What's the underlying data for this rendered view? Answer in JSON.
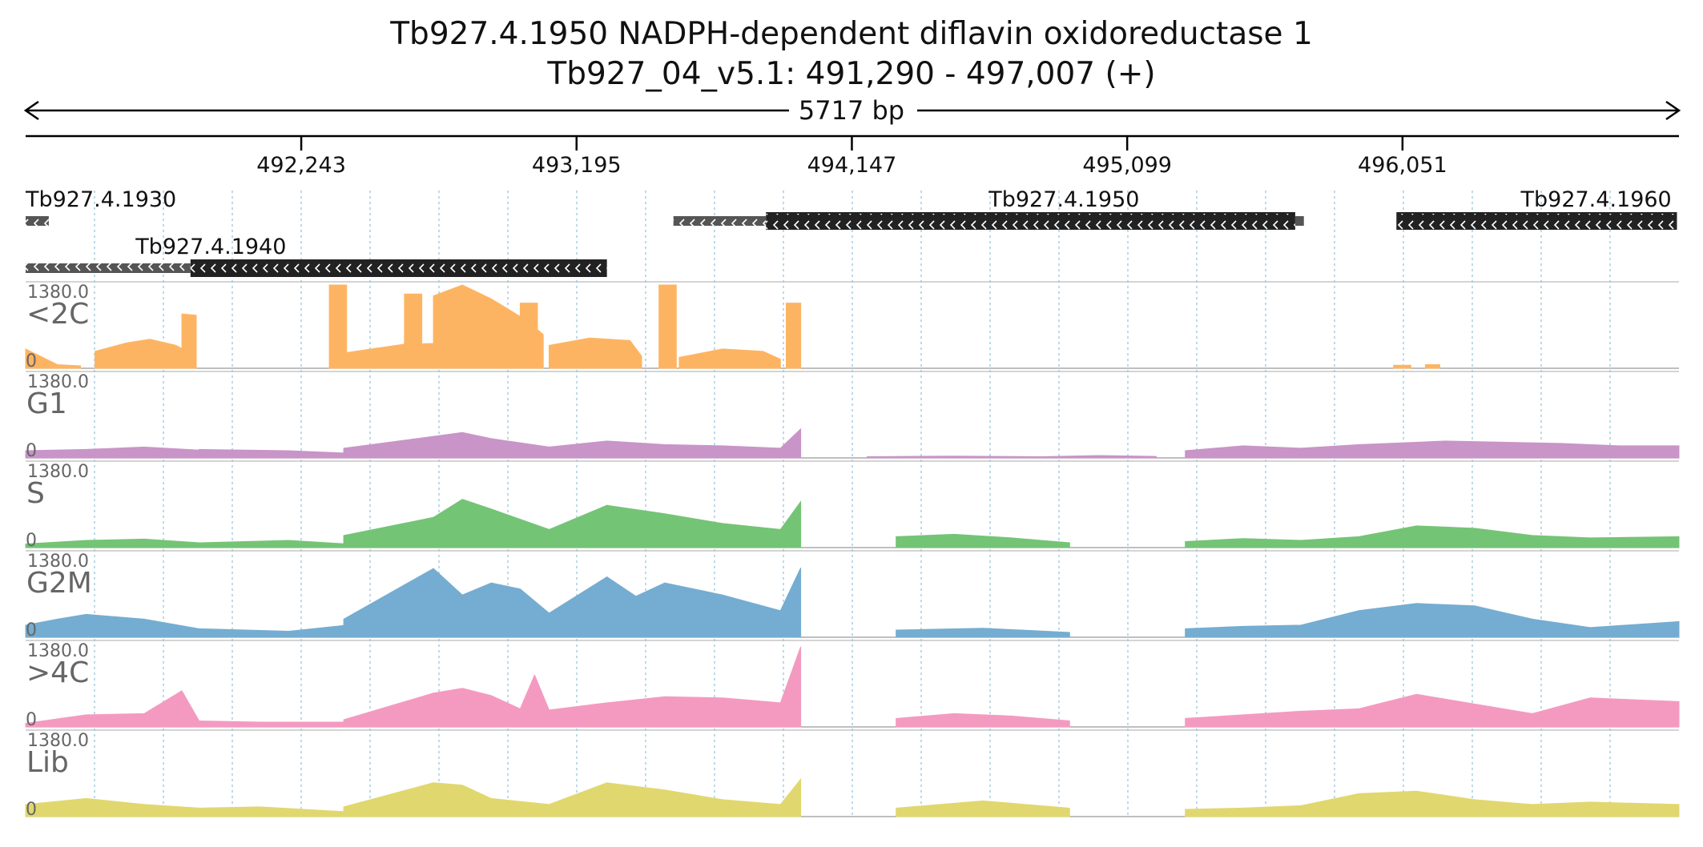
{
  "header": {
    "title": "Tb927.4.1950  NADPH-dependent diflavin oxidoreductase 1",
    "subtitle": "Tb927_04_v5.1: 491,290 - 497,007 (+)",
    "span_label": "5717 bp"
  },
  "ruler": {
    "ticks": [
      "492,243",
      "493,195",
      "494,147",
      "495,099",
      "496,051"
    ]
  },
  "genes": [
    {
      "id": "Tb927.4.1930"
    },
    {
      "id": "Tb927.4.1940"
    },
    {
      "id": "Tb927.4.1950"
    },
    {
      "id": "Tb927.4.1960"
    }
  ],
  "chart_data": {
    "type": "area",
    "region": {
      "chrom": "Tb927_04_v5.1",
      "start": 491290,
      "end": 497007,
      "strand": "+",
      "length_bp": 5717
    },
    "gene_models": [
      {
        "id": "Tb927.4.1930",
        "strand": "-",
        "utr": [
          491290,
          491370
        ],
        "cds": [],
        "label_at": 491290
      },
      {
        "id": "Tb927.4.1940",
        "strand": "-",
        "utr": [
          491290,
          491860
        ],
        "cds": [
          491860,
          493300
        ],
        "label_at": 491670
      },
      {
        "id": "Tb927.4.1950",
        "strand": "-",
        "utr": [
          493530,
          493850
        ],
        "cds": [
          493850,
          495680
        ],
        "utr2": [
          495680,
          495710
        ],
        "label_at": 494620
      },
      {
        "id": "Tb927.4.1960",
        "strand": "-",
        "utr": [],
        "cds": [
          496030,
          497000
        ],
        "label_at": 496460
      }
    ],
    "ylim": [
      0,
      1380
    ],
    "ymax_label": "1380.0",
    "ymin_label": "0",
    "tracks": [
      {
        "name": "<2C",
        "color": "#fdb462",
        "segments": [
          {
            "x": [
              491290,
              491400,
              491480
            ],
            "y": [
              320,
              60,
              40
            ]
          },
          {
            "x": [
              491530,
              491640,
              491720,
              491810,
              491870
            ],
            "y": [
              280,
              420,
              480,
              380,
              220
            ]
          },
          {
            "x": [
              491830,
              491880
            ],
            "y": [
              900,
              880
            ]
          },
          {
            "x": [
              492340,
              492400
            ],
            "y": [
              1380,
              1380
            ]
          },
          {
            "x": [
              492400,
              492600,
              492780,
              492960
            ],
            "y": [
              260,
              400,
              420,
              360
            ]
          },
          {
            "x": [
              492600,
              492660
            ],
            "y": [
              1230,
              1230
            ]
          },
          {
            "x": [
              492700,
              492800,
              492900,
              493020,
              493080
            ],
            "y": [
              1200,
              1380,
              1150,
              800,
              560
            ]
          },
          {
            "x": [
              493000,
              493060
            ],
            "y": [
              1080,
              1080
            ]
          },
          {
            "x": [
              493100,
              493240,
              493380,
              493420
            ],
            "y": [
              380,
              500,
              460,
              200
            ]
          },
          {
            "x": [
              493480,
              493540
            ],
            "y": [
              1380,
              1380
            ]
          },
          {
            "x": [
              493550,
              493700,
              493840,
              493900
            ],
            "y": [
              180,
              320,
              280,
              150
            ]
          },
          {
            "x": [
              493920,
              493970
            ],
            "y": [
              1080,
              1080
            ]
          },
          {
            "x": [
              496020,
              496080
            ],
            "y": [
              50,
              50
            ]
          },
          {
            "x": [
              496130,
              496180
            ],
            "y": [
              60,
              60
            ]
          }
        ]
      },
      {
        "name": "G1",
        "color": "#c994c7",
        "segments": [
          {
            "x": [
              491290,
              491500,
              491700,
              491890
            ],
            "y": [
              120,
              140,
              180,
              130
            ]
          },
          {
            "x": [
              491890,
              492200,
              492400
            ],
            "y": [
              140,
              120,
              80
            ]
          },
          {
            "x": [
              492390,
              492800,
              492900,
              493100,
              493300,
              493500,
              493700,
              493900,
              493970
            ],
            "y": [
              160,
              420,
              320,
              180,
              280,
              220,
              200,
              160,
              480
            ]
          },
          {
            "x": [
              494200,
              494500,
              494800,
              495000,
              495200
            ],
            "y": [
              20,
              30,
              20,
              40,
              25
            ]
          },
          {
            "x": [
              495300,
              495500,
              495700,
              495900,
              496200,
              496400,
              496600,
              496800,
              497007
            ],
            "y": [
              120,
              200,
              160,
              220,
              280,
              260,
              240,
              200,
              200
            ]
          }
        ]
      },
      {
        "name": "S",
        "color": "#74c476",
        "segments": [
          {
            "x": [
              491290,
              491500,
              491700,
              491890
            ],
            "y": [
              60,
              120,
              140,
              80
            ]
          },
          {
            "x": [
              491890,
              492200,
              492400
            ],
            "y": [
              80,
              120,
              60
            ]
          },
          {
            "x": [
              492390,
              492700,
              492800,
              492900,
              493100,
              493300,
              493500,
              493700,
              493900,
              493970
            ],
            "y": [
              200,
              500,
              800,
              640,
              300,
              700,
              560,
              400,
              300,
              760
            ]
          },
          {
            "x": [
              494300,
              494500,
              494700,
              494900
            ],
            "y": [
              180,
              220,
              160,
              80
            ]
          },
          {
            "x": [
              495300,
              495500,
              495700,
              495900,
              496100,
              496300,
              496500,
              496700,
              497007
            ],
            "y": [
              100,
              150,
              120,
              180,
              360,
              320,
              200,
              160,
              180
            ]
          }
        ]
      },
      {
        "name": "G2M",
        "color": "#74add1",
        "segments": [
          {
            "x": [
              491290,
              491400,
              491500,
              491700,
              491890
            ],
            "y": [
              200,
              300,
              380,
              300,
              140
            ]
          },
          {
            "x": [
              491890,
              492200,
              492400
            ],
            "y": [
              140,
              100,
              200
            ]
          },
          {
            "x": [
              492390,
              492700,
              492800,
              492900,
              493000,
              493100,
              493300,
              493400,
              493500,
              493700,
              493900,
              493970
            ],
            "y": [
              300,
              1140,
              700,
              900,
              800,
              400,
              1000,
              680,
              900,
              700,
              440,
              1150
            ]
          },
          {
            "x": [
              494300,
              494600,
              494900
            ],
            "y": [
              120,
              150,
              80
            ]
          },
          {
            "x": [
              495300,
              495500,
              495700,
              495900,
              496100,
              496300,
              496500,
              496700,
              497007
            ],
            "y": [
              140,
              180,
              200,
              440,
              560,
              520,
              300,
              160,
              260
            ]
          }
        ]
      },
      {
        "name": ">4C",
        "color": "#f49ac1",
        "segments": [
          {
            "x": [
              491290,
              491500,
              491700,
              491830,
              491890
            ],
            "y": [
              60,
              200,
              220,
              600,
              100
            ]
          },
          {
            "x": [
              491890,
              492100,
              492400
            ],
            "y": [
              100,
              80,
              80
            ]
          },
          {
            "x": [
              492390,
              492700,
              492800,
              492900,
              493000,
              493050,
              493100,
              493300,
              493500,
              493700,
              493900,
              493970
            ],
            "y": [
              120,
              560,
              640,
              520,
              300,
              860,
              280,
              400,
              500,
              480,
              400,
              1330
            ]
          },
          {
            "x": [
              494300,
              494500,
              494700,
              494900
            ],
            "y": [
              140,
              220,
              180,
              100
            ]
          },
          {
            "x": [
              495300,
              495500,
              495700,
              495900,
              496100,
              496300,
              496500,
              496700,
              497007
            ],
            "y": [
              140,
              200,
              260,
              300,
              540,
              380,
              220,
              480,
              420
            ]
          }
        ]
      },
      {
        "name": "Lib",
        "color": "#e0d86e",
        "segments": [
          {
            "x": [
              491290,
              491500,
              491700,
              491890
            ],
            "y": [
              200,
              300,
              200,
              140
            ]
          },
          {
            "x": [
              491890,
              492100,
              492400
            ],
            "y": [
              140,
              160,
              80
            ]
          },
          {
            "x": [
              492390,
              492700,
              492800,
              492900,
              493100,
              493300,
              493500,
              493700,
              493900,
              493970
            ],
            "y": [
              160,
              560,
              520,
              300,
              200,
              560,
              440,
              280,
              200,
              620
            ]
          },
          {
            "x": [
              494300,
              494600,
              494900
            ],
            "y": [
              140,
              260,
              140
            ]
          },
          {
            "x": [
              495300,
              495500,
              495700,
              495900,
              496100,
              496300,
              496500,
              496700,
              497007
            ],
            "y": [
              120,
              140,
              180,
              380,
              420,
              280,
              200,
              240,
              200
            ]
          }
        ]
      }
    ]
  }
}
